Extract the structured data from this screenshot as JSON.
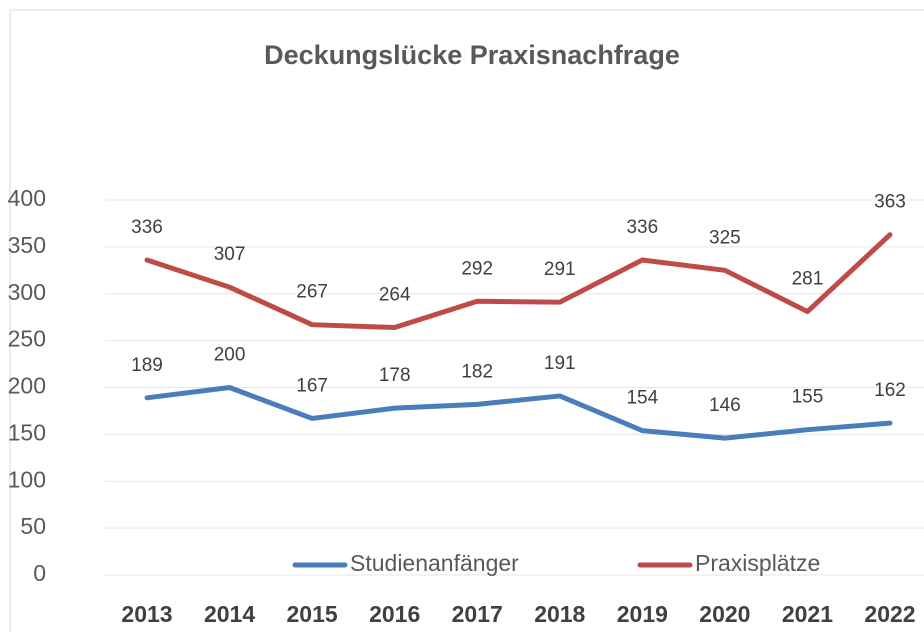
{
  "chart_data": {
    "type": "line",
    "title": "Deckungslücke Praxisnachfrage",
    "categories": [
      "2013",
      "2014",
      "2015",
      "2016",
      "2017",
      "2018",
      "2019",
      "2020",
      "2021",
      "2022"
    ],
    "series": [
      {
        "name": "Studienanfänger",
        "color": "#4a7ebb",
        "values": [
          189,
          200,
          167,
          178,
          182,
          191,
          154,
          146,
          155,
          162
        ]
      },
      {
        "name": "Praxisplätze",
        "color": "#be4b48",
        "values": [
          336,
          307,
          267,
          264,
          292,
          291,
          336,
          325,
          281,
          363
        ]
      }
    ],
    "ylim": [
      0,
      400
    ],
    "yticks": [
      0,
      50,
      100,
      150,
      200,
      250,
      300,
      350,
      400
    ],
    "grid": true,
    "legend": "bottom"
  }
}
